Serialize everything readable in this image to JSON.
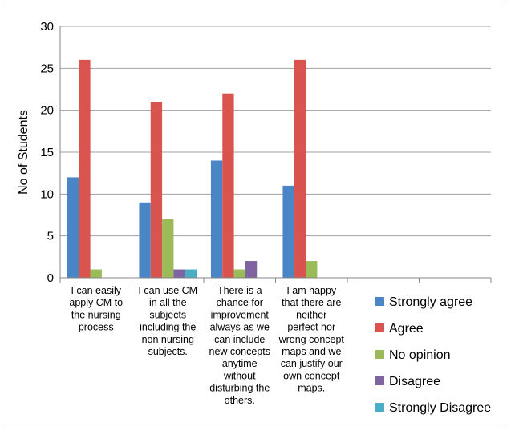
{
  "chart_data": {
    "type": "bar",
    "title": "",
    "xlabel": "",
    "ylabel": "No of Students",
    "ylim": [
      0,
      30
    ],
    "yticks": [
      0,
      5,
      10,
      15,
      20,
      25,
      30
    ],
    "grid": true,
    "legend_position": "right",
    "categories": [
      [
        "I can easily",
        "apply CM to",
        "the nursing",
        "process"
      ],
      [
        "I can use CM",
        "in all the",
        "subjects",
        "including the",
        "non nursing",
        "subjects."
      ],
      [
        "There is a",
        "chance for",
        "improvement",
        "always as we",
        "can include",
        "new concepts",
        "anytime",
        "without",
        "disturbing the",
        "others."
      ],
      [
        "I am happy",
        "that there are",
        "neither",
        "perfect nor",
        "wrong concept",
        "maps and we",
        "can justify our",
        "own concept",
        "maps."
      ],
      [],
      []
    ],
    "series": [
      {
        "name": "Strongly agree",
        "color": "#4a86c5",
        "values": [
          12,
          9,
          14,
          11,
          null,
          null
        ]
      },
      {
        "name": "Agree",
        "color": "#d9534f",
        "values": [
          26,
          21,
          22,
          26,
          null,
          null
        ]
      },
      {
        "name": "No opinion",
        "color": "#9bbb59",
        "values": [
          1,
          7,
          1,
          2,
          null,
          null
        ]
      },
      {
        "name": "Disagree",
        "color": "#8064a2",
        "values": [
          0,
          1,
          2,
          0,
          null,
          null
        ]
      },
      {
        "name": "Strongly Disagree",
        "color": "#4bacc6",
        "values": [
          0,
          1,
          0,
          0,
          null,
          null
        ]
      }
    ]
  }
}
